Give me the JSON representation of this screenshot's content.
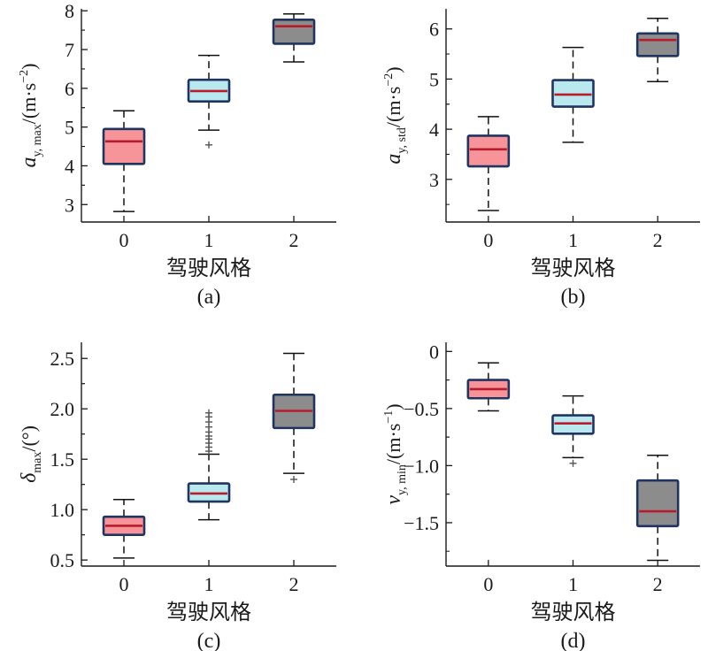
{
  "colors": {
    "style0": "#f7949a",
    "style1": "#b9e8ee",
    "style2": "#8c8c8c",
    "median": "#b81c2c",
    "edge": "#1f3560",
    "axis": "#1a1a1a"
  },
  "chart_data": [
    {
      "type": "box",
      "caption": "(a)",
      "xlabel": "驾驶风格",
      "ylabel": {
        "main": "a",
        "sub": "y, max",
        "unit": "/(m·s",
        "exp": "−2",
        "close": ")"
      },
      "categories": [
        "0",
        "1",
        "2"
      ],
      "ylim": [
        2.55,
        8.05
      ],
      "yticks": [
        3,
        4,
        5,
        6,
        7,
        8
      ],
      "ytick_labels": [
        "3",
        "4",
        "5",
        "6",
        "7",
        "8"
      ],
      "boxes": [
        {
          "q1": 4.05,
          "median": 4.63,
          "q3": 4.95,
          "whislo": 2.82,
          "whishi": 5.42,
          "fliers": []
        },
        {
          "q1": 5.66,
          "median": 5.93,
          "q3": 6.22,
          "whislo": 4.92,
          "whishi": 6.85,
          "fliers": [
            4.54
          ]
        },
        {
          "q1": 7.15,
          "median": 7.6,
          "q3": 7.77,
          "whislo": 6.68,
          "whishi": 7.92,
          "fliers": []
        }
      ]
    },
    {
      "type": "box",
      "caption": "(b)",
      "xlabel": "驾驶风格",
      "ylabel": {
        "main": "a",
        "sub": "y, std",
        "unit": "/(m·s",
        "exp": "−2",
        "close": ")"
      },
      "categories": [
        "0",
        "1",
        "2"
      ],
      "ylim": [
        2.15,
        6.4
      ],
      "yticks": [
        3,
        4,
        5,
        6
      ],
      "ytick_labels": [
        "3",
        "4",
        "5",
        "6"
      ],
      "boxes": [
        {
          "q1": 3.26,
          "median": 3.6,
          "q3": 3.87,
          "whislo": 2.38,
          "whishi": 4.25,
          "fliers": []
        },
        {
          "q1": 4.45,
          "median": 4.69,
          "q3": 4.98,
          "whislo": 3.74,
          "whishi": 5.63,
          "fliers": []
        },
        {
          "q1": 5.46,
          "median": 5.78,
          "q3": 5.91,
          "whislo": 4.95,
          "whishi": 6.21,
          "fliers": []
        }
      ]
    },
    {
      "type": "box",
      "caption": "(c)",
      "xlabel": "驾驶风格",
      "ylabel": {
        "main": "δ",
        "sub": "max",
        "unit": "/(°)",
        "exp": "",
        "close": ""
      },
      "categories": [
        "0",
        "1",
        "2"
      ],
      "ylim": [
        0.44,
        2.66
      ],
      "yticks": [
        0.5,
        1.0,
        1.5,
        2.0,
        2.5
      ],
      "ytick_labels": [
        "0.5",
        "1.0",
        "1.5",
        "2.0",
        "2.5"
      ],
      "boxes": [
        {
          "q1": 0.75,
          "median": 0.84,
          "q3": 0.93,
          "whislo": 0.52,
          "whishi": 1.1,
          "fliers": []
        },
        {
          "q1": 1.08,
          "median": 1.16,
          "q3": 1.26,
          "whislo": 0.9,
          "whishi": 1.55,
          "fliers": [
            1.58,
            1.62,
            1.66,
            1.7,
            1.73,
            1.77,
            1.82,
            1.87,
            1.92,
            1.96
          ]
        },
        {
          "q1": 1.81,
          "median": 1.98,
          "q3": 2.14,
          "whislo": 1.36,
          "whishi": 2.55,
          "fliers": [
            1.3
          ]
        }
      ]
    },
    {
      "type": "box",
      "caption": "(d)",
      "xlabel": "驾驶风格",
      "ylabel": {
        "main": "v",
        "sub": "y, min",
        "unit": "/(m·s",
        "exp": "−1",
        "close": ")"
      },
      "categories": [
        "0",
        "1",
        "2"
      ],
      "ylim": [
        -1.88,
        0.08
      ],
      "yticks": [
        0,
        -0.5,
        -1.0,
        -1.5
      ],
      "ytick_labels": [
        "0",
        "−0.5",
        "−1.0",
        "−1.5"
      ],
      "boxes": [
        {
          "q1": -0.41,
          "median": -0.33,
          "q3": -0.25,
          "whislo": -0.52,
          "whishi": -0.1,
          "fliers": []
        },
        {
          "q1": -0.72,
          "median": -0.63,
          "q3": -0.56,
          "whislo": -0.93,
          "whishi": -0.39,
          "fliers": [
            -0.98
          ]
        },
        {
          "q1": -1.53,
          "median": -1.4,
          "q3": -1.13,
          "whislo": -1.83,
          "whishi": -0.91,
          "fliers": []
        }
      ]
    }
  ]
}
